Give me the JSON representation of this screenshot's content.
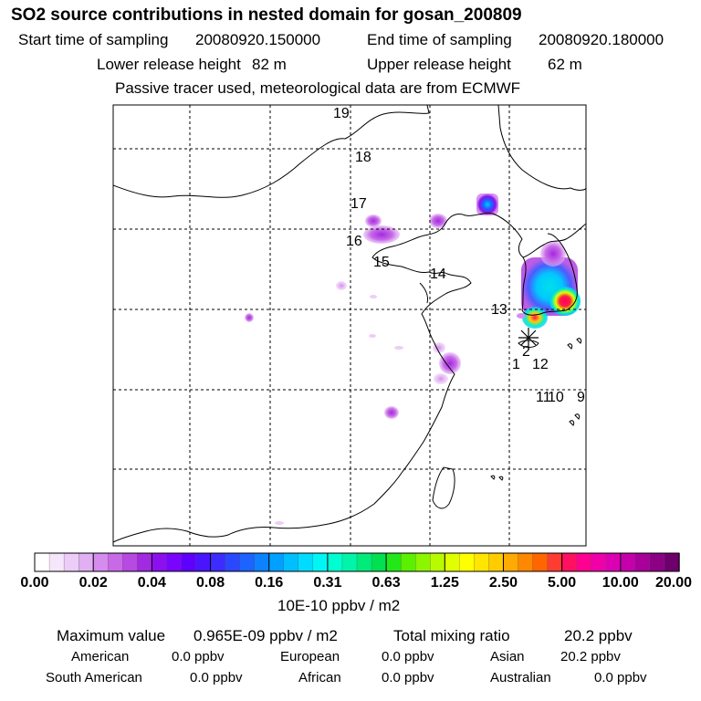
{
  "title": "SO2 source contributions in nested domain for gosan_200809",
  "sampling": {
    "start_label": "Start time of sampling",
    "start_value": "20080920.150000",
    "end_label": "End time of sampling",
    "end_value": "20080920.180000"
  },
  "release": {
    "lower_label": "Lower release height",
    "lower_value": "82 m",
    "upper_label": "Upper release height",
    "upper_value": "62 m"
  },
  "tracer_note": "Passive tracer used, meteorological data are from ECMWF",
  "map": {
    "trajectory_labels": [
      "19",
      "18",
      "17",
      "16",
      "15",
      "14",
      "13",
      "2",
      "1",
      "12",
      "11",
      "10",
      "9"
    ],
    "receptor_marker": "asterisk"
  },
  "colorbar": {
    "tick_labels": [
      "0.00",
      "0.02",
      "0.04",
      "0.08",
      "0.16",
      "0.31",
      "0.63",
      "1.25",
      "2.50",
      "5.00",
      "10.00",
      "20.00"
    ],
    "colors": [
      "#ffffff",
      "#f6e6fb",
      "#eccdf7",
      "#e0b0f3",
      "#d58cee",
      "#c86ae8",
      "#b64ae3",
      "#a22ae0",
      "#8c0ff0",
      "#7a05ff",
      "#5f00ff",
      "#4a14ff",
      "#3d2cff",
      "#2a48ff",
      "#1c63ff",
      "#0c82ff",
      "#00a0ff",
      "#00bfff",
      "#00dcff",
      "#00f5f5",
      "#00ffd0",
      "#00f5a8",
      "#00eb7a",
      "#00e050",
      "#22e81a",
      "#5af000",
      "#8cf500",
      "#b8fa00",
      "#e0ff00",
      "#ffff00",
      "#ffe600",
      "#ffcc00",
      "#ffaa00",
      "#ff8800",
      "#ff6600",
      "#ff3c32",
      "#ff1060",
      "#ff0090",
      "#f000a8",
      "#dc00b4",
      "#c400ac",
      "#a80098",
      "#8c0084",
      "#6e006c"
    ],
    "unit": "10E-10 ppbv / m2"
  },
  "stats": {
    "max_label": "Maximum value",
    "max_value": "0.965E-09 ppbv / m2",
    "total_label": "Total mixing ratio",
    "total_value": "20.2 ppbv",
    "american_label": "American",
    "american_value": "0.0 ppbv",
    "european_label": "European",
    "european_value": "0.0 ppbv",
    "asian_label": "Asian",
    "asian_value": "20.2 ppbv",
    "south_american_label": "South American",
    "south_american_value": "0.0 ppbv",
    "african_label": "African",
    "african_value": "0.0 ppbv",
    "australian_label": "Australian",
    "australian_value": "0.0 ppbv"
  }
}
